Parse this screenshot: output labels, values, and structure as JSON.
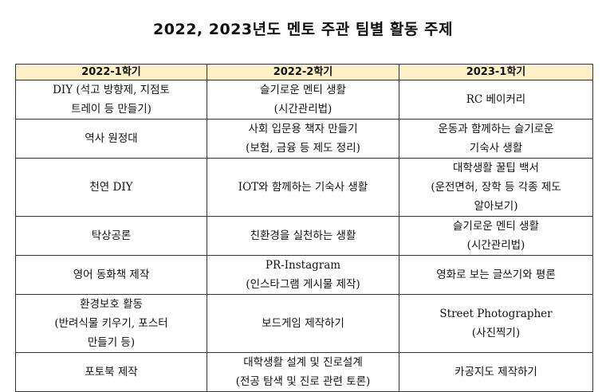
{
  "title": "2022, 2023년도 멘토 주관 팀별 활동 주제",
  "headers": [
    "2022-1학기",
    "2022-2학기",
    "2023-1학기"
  ],
  "rows": [
    [
      [
        "DIY (석고 방향제, 지점토",
        "트레이 등 만들기)"
      ],
      [
        "슬기로운 멘티 생활",
        "(시간관리법)"
      ],
      [
        "RC 베이커리"
      ]
    ],
    [
      [
        "역사 원정대"
      ],
      [
        "사회 입문용 책자 만들기",
        "(보험, 금융 등 제도 정리)"
      ],
      [
        "운동과 함께하는 슬기로운",
        "기숙사 생활"
      ]
    ],
    [
      [
        "천연 DIY"
      ],
      [
        "IOT와 함께하는 기숙사 생활"
      ],
      [
        "대학생활 꿀팁 백서",
        "(운전면허, 장학 등 각종 제도",
        "알아보기)"
      ]
    ],
    [
      [
        "탁상공론"
      ],
      [
        "친환경을 실천하는 생활"
      ],
      [
        "슬기로운 멘티 생활",
        "(시간관리법)"
      ]
    ],
    [
      [
        "영어 동화책 제작"
      ],
      [
        "PR-Instagram",
        "(인스타그램 게시물 제작)"
      ],
      [
        "영화로 보는 글쓰기와 평론"
      ]
    ],
    [
      [
        "환경보호 활동",
        "(반려식물 키우기, 포스터",
        "만들기 등)"
      ],
      [
        "보드게임 제작하기"
      ],
      [
        "Street Photographer",
        "(사진찍기)"
      ]
    ],
    [
      [
        "포토북 제작"
      ],
      [
        "대학생활 설계 및 진로설계",
        "(전공 탐색 및 진로 관련 토론)"
      ],
      [
        "카공지도 제작하기"
      ]
    ]
  ]
}
